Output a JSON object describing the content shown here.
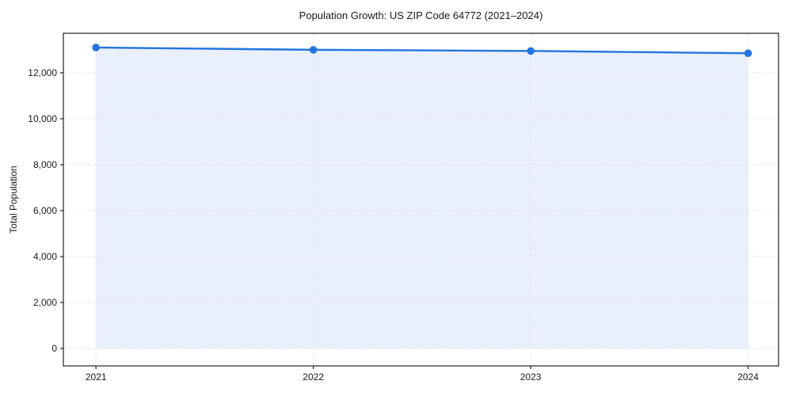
{
  "chart_data": {
    "type": "line",
    "title": "Population Growth: US ZIP Code 64772 (2021–2024)",
    "xlabel": "",
    "ylabel": "Total Population",
    "x": [
      2021,
      2022,
      2023,
      2024
    ],
    "series": [
      {
        "name": "Total Population",
        "values": [
          13100,
          13000,
          12950,
          12850
        ]
      }
    ],
    "xticks": [
      2021,
      2022,
      2023,
      2024
    ],
    "xtick_labels": [
      "2021",
      "2022",
      "2023",
      "2024"
    ],
    "yticks": [
      0,
      2000,
      4000,
      6000,
      8000,
      10000,
      12000
    ],
    "ytick_labels": [
      "0",
      "2,000",
      "4,000",
      "6,000",
      "8,000",
      "10,000",
      "12,000"
    ],
    "xlim": [
      2020.85,
      2024.14
    ],
    "ylim": [
      -760,
      13720
    ],
    "grid": true,
    "grid_style": "dashed",
    "legend": "none",
    "fill_to_zero": true,
    "colors": {
      "line": "#2374e0",
      "marker": "#2374e0",
      "fill": "#e9effb",
      "grid": "#e3e6ea",
      "spine": "#222222",
      "text": "#1a1a1a"
    }
  }
}
